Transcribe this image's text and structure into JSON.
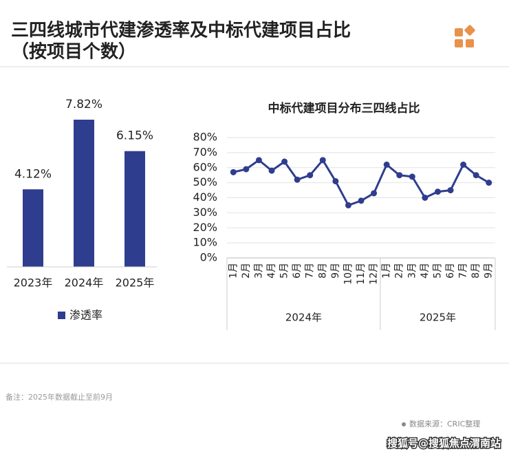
{
  "header": {
    "title_lines": [
      "三四线城市代建渗透率及中标代建项目占比",
      "（按项目个数）"
    ]
  },
  "chart_data": [
    {
      "type": "bar",
      "categories": [
        "2023年",
        "2024年",
        "2025年"
      ],
      "series": [
        {
          "name": "渗透率",
          "color": "#2f3d8f",
          "values": [
            4.12,
            7.82,
            6.15
          ],
          "value_labels": [
            "4.12%",
            "7.82%",
            "6.15%"
          ]
        }
      ]
    },
    {
      "type": "line",
      "title": "中标代建项目分布三四线占比",
      "category_groups": [
        {
          "label": "2024年",
          "categories": [
            "1月",
            "2月",
            "3月",
            "4月",
            "5月",
            "6月",
            "7月",
            "8月",
            "9月",
            "10月",
            "11月",
            "12月"
          ]
        },
        {
          "label": "2025年",
          "categories": [
            "1月",
            "2月",
            "3月",
            "4月",
            "5月",
            "6月",
            "7月",
            "8月",
            "9月"
          ]
        }
      ],
      "series": [
        {
          "color": "#2f3d8f",
          "values": [
            57,
            59,
            65,
            58,
            64,
            52,
            55,
            65,
            51,
            35,
            38,
            43,
            62,
            55,
            54,
            40,
            44,
            45,
            62,
            55,
            50
          ]
        }
      ],
      "ylim": [
        0,
        80
      ],
      "yticks": [
        {
          "value": 0,
          "label": "0%"
        },
        {
          "value": 10,
          "label": "10%"
        },
        {
          "value": 20,
          "label": "20%"
        },
        {
          "value": 30,
          "label": "30%"
        },
        {
          "value": 40,
          "label": "40%"
        },
        {
          "value": 50,
          "label": "50%"
        },
        {
          "value": 60,
          "label": "60%"
        },
        {
          "value": 70,
          "label": "70%"
        },
        {
          "value": 80,
          "label": "80%"
        }
      ],
      "grid": true
    }
  ],
  "footer": {
    "note": "备注：2025年数据截止至前9月",
    "source": "数据来源：CRIC整理",
    "watermark": "搜狐号@搜狐焦点渭南站"
  }
}
